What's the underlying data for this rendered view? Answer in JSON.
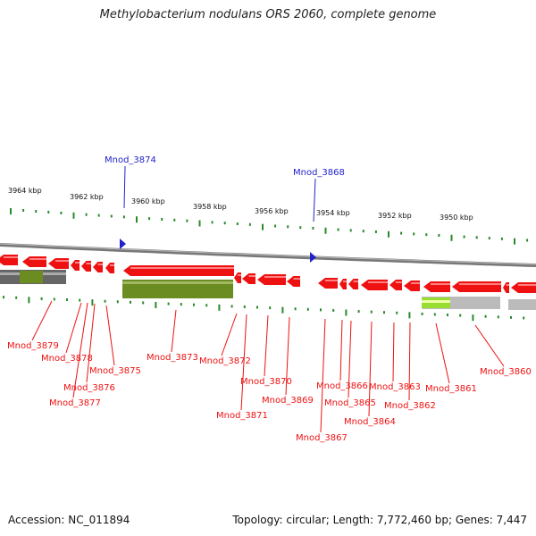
{
  "title": "Methylobacterium nodulans ORS 2060, complete genome",
  "accession": "Accession: NC_011894",
  "summary": "Topology: circular; Length: 7,772,460 bp; Genes: 7,447",
  "colors": {
    "gene": "#ee1111",
    "gene_light": "#ff8080",
    "highlight": "#2222cc",
    "backbone": "#888888",
    "tick": "#2a8a2a",
    "olive": "#6b8c21",
    "grey_bar": "#bbbbbb",
    "lime": "#99dd33"
  },
  "scale_labels": [
    "3964 kbp",
    "3962 kbp",
    "3960 kbp",
    "3958 kbp",
    "3956 kbp",
    "3954 kbp",
    "3952 kbp",
    "3950 kbp"
  ],
  "highlighted_genes": [
    "Mnod_3874",
    "Mnod_3868"
  ],
  "gene_labels": [
    "Mnod_3879",
    "Mnod_3878",
    "Mnod_3876",
    "Mnod_3877",
    "Mnod_3875",
    "Mnod_3873",
    "Mnod_3872",
    "Mnod_3871",
    "Mnod_3870",
    "Mnod_3869",
    "Mnod_3867",
    "Mnod_3866",
    "Mnod_3865",
    "Mnod_3864",
    "Mnod_3863",
    "Mnod_3862",
    "Mnod_3861",
    "Mnod_3860"
  ]
}
